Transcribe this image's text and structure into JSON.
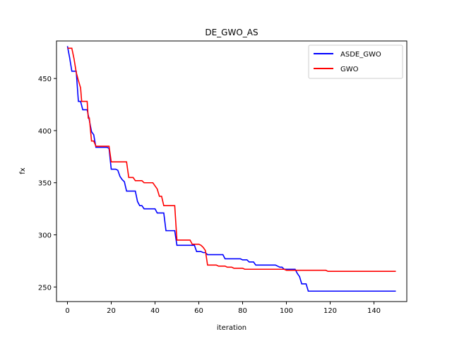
{
  "chart_data": {
    "type": "line",
    "title": "DE_GWO_AS",
    "xlabel": "iteration",
    "ylabel": "fx",
    "xlim": [
      -5,
      155
    ],
    "ylim": [
      236,
      486
    ],
    "xticks": [
      0,
      20,
      40,
      60,
      80,
      100,
      120,
      140
    ],
    "yticks": [
      250,
      300,
      350,
      400,
      450
    ],
    "grid": false,
    "legend_position": "top-right",
    "series": [
      {
        "name": "ASDE_GWO",
        "color": "#0000ff",
        "points": [
          [
            0,
            481
          ],
          [
            1,
            470
          ],
          [
            2,
            457
          ],
          [
            3,
            457
          ],
          [
            4,
            457
          ],
          [
            5,
            428
          ],
          [
            6,
            428
          ],
          [
            7,
            420
          ],
          [
            8,
            420
          ],
          [
            9,
            420
          ],
          [
            10,
            410
          ],
          [
            11,
            399
          ],
          [
            12,
            396
          ],
          [
            13,
            384
          ],
          [
            14,
            384
          ],
          [
            15,
            384
          ],
          [
            16,
            384
          ],
          [
            17,
            384
          ],
          [
            18,
            384
          ],
          [
            19,
            383
          ],
          [
            20,
            363
          ],
          [
            22,
            363
          ],
          [
            23,
            362
          ],
          [
            24,
            356
          ],
          [
            25,
            353
          ],
          [
            26,
            351
          ],
          [
            27,
            342
          ],
          [
            31,
            342
          ],
          [
            32,
            332
          ],
          [
            33,
            328
          ],
          [
            34,
            328
          ],
          [
            35,
            325
          ],
          [
            40,
            325
          ],
          [
            41,
            321
          ],
          [
            44,
            321
          ],
          [
            45,
            304
          ],
          [
            49,
            304
          ],
          [
            50,
            290
          ],
          [
            58,
            290
          ],
          [
            59,
            284
          ],
          [
            61,
            284
          ],
          [
            62,
            283
          ],
          [
            63,
            283
          ],
          [
            64,
            281
          ],
          [
            71,
            281
          ],
          [
            72,
            277
          ],
          [
            79,
            277
          ],
          [
            80,
            276
          ],
          [
            82,
            276
          ],
          [
            83,
            274
          ],
          [
            85,
            274
          ],
          [
            86,
            271
          ],
          [
            95,
            271
          ],
          [
            96,
            270
          ],
          [
            97,
            269
          ],
          [
            98,
            269
          ],
          [
            99,
            267
          ],
          [
            104,
            267
          ],
          [
            105,
            263
          ],
          [
            106,
            260
          ],
          [
            107,
            253
          ],
          [
            109,
            253
          ],
          [
            110,
            246
          ],
          [
            150,
            246
          ]
        ]
      },
      {
        "name": "GWO",
        "color": "#ff0000",
        "points": [
          [
            0,
            479
          ],
          [
            2,
            479
          ],
          [
            3,
            469
          ],
          [
            4,
            456
          ],
          [
            5,
            448
          ],
          [
            6,
            441
          ],
          [
            6.5,
            428
          ],
          [
            9,
            428
          ],
          [
            9.5,
            412
          ],
          [
            10,
            412
          ],
          [
            11,
            390
          ],
          [
            12,
            390
          ],
          [
            13,
            385
          ],
          [
            19,
            385
          ],
          [
            20,
            370
          ],
          [
            27,
            370
          ],
          [
            28,
            355
          ],
          [
            30,
            355
          ],
          [
            31,
            352
          ],
          [
            34,
            352
          ],
          [
            35,
            350
          ],
          [
            39,
            350
          ],
          [
            40,
            347
          ],
          [
            41,
            344
          ],
          [
            42,
            337
          ],
          [
            43,
            337
          ],
          [
            44,
            328
          ],
          [
            49,
            328
          ],
          [
            50,
            295
          ],
          [
            56,
            295
          ],
          [
            57,
            291
          ],
          [
            60,
            291
          ],
          [
            61,
            290
          ],
          [
            62,
            288
          ],
          [
            63,
            285
          ],
          [
            64,
            271
          ],
          [
            68,
            271
          ],
          [
            69,
            270
          ],
          [
            72,
            270
          ],
          [
            73,
            269
          ],
          [
            75,
            269
          ],
          [
            76,
            268
          ],
          [
            80,
            268
          ],
          [
            81,
            267
          ],
          [
            88,
            267
          ],
          [
            89,
            267
          ],
          [
            99,
            267
          ],
          [
            100,
            266
          ],
          [
            107,
            266
          ],
          [
            108,
            266
          ],
          [
            118,
            266
          ],
          [
            119,
            265
          ],
          [
            150,
            265
          ]
        ]
      }
    ]
  }
}
